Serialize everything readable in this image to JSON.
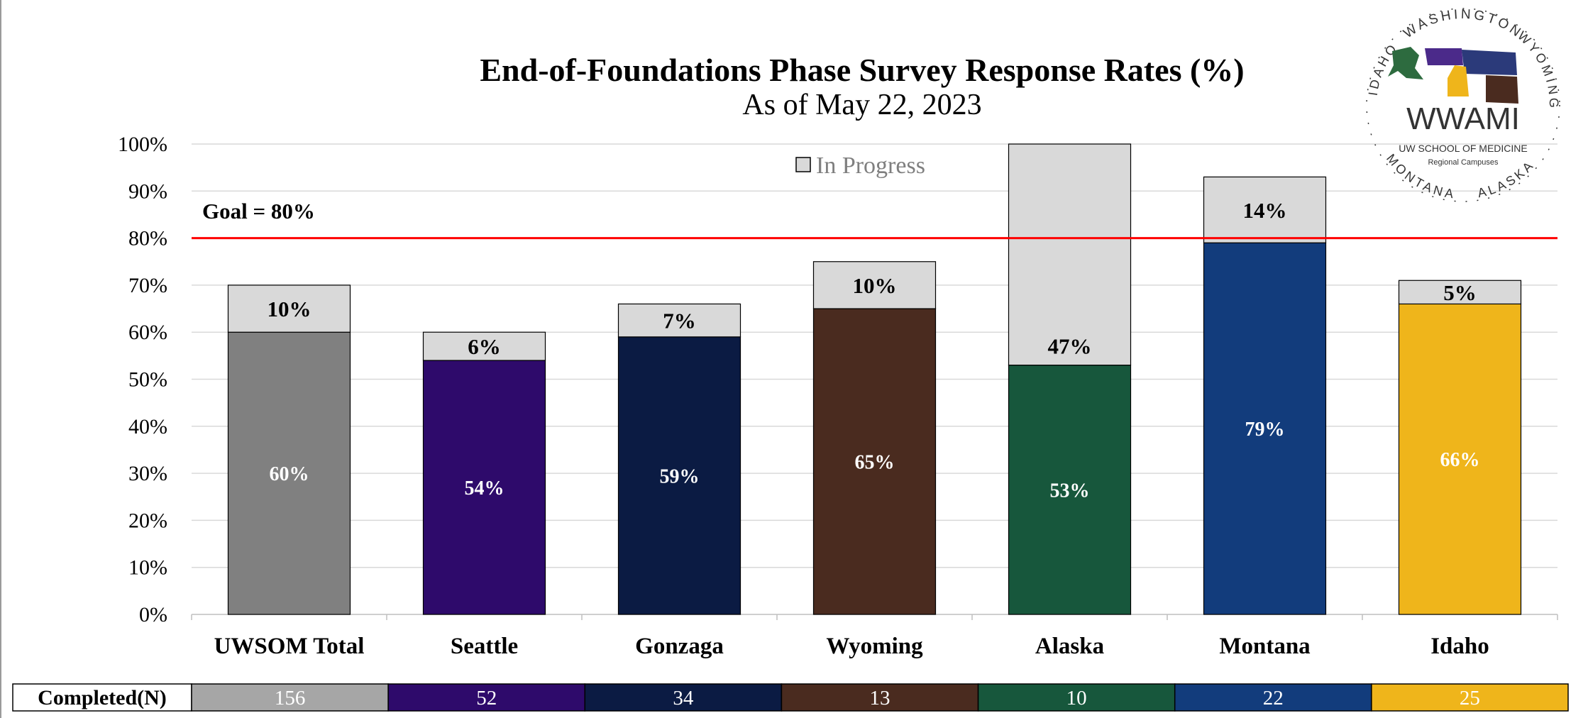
{
  "title": "End-of-Foundations Phase Survey Response Rates (%)",
  "subtitle": "As of May 22, 2023",
  "goal_label": "Goal = 80%",
  "legend_label": "In Progress",
  "colors": {
    "in_progress": "#d9d9d9",
    "goal_line": "#ff0000",
    "grid": "#d9d9d9"
  },
  "logo": {
    "name": "WWAMI",
    "line1": "UW SCHOOL OF MEDICINE",
    "line2": "Regional Campuses",
    "ring_words": [
      "WASHINGTON",
      "WYOMING",
      "ALASKA",
      "MONTANA",
      "IDAHO"
    ]
  },
  "table": {
    "row_label": "Completed(N)",
    "values": [
      "156",
      "52",
      "34",
      "13",
      "10",
      "22",
      "25"
    ]
  },
  "chart_data": {
    "type": "bar",
    "stacked": true,
    "categories": [
      "UWSOM Total",
      "Seattle",
      "Gonzaga",
      "Wyoming",
      "Alaska",
      "Montana",
      "Idaho"
    ],
    "ylim": [
      0,
      100
    ],
    "y_ticks": [
      "0%",
      "10%",
      "20%",
      "30%",
      "40%",
      "50%",
      "60%",
      "70%",
      "80%",
      "90%",
      "100%"
    ],
    "goal": 80,
    "series": [
      {
        "name": "",
        "values": [
          60,
          54,
          59,
          65,
          53,
          79,
          66
        ],
        "labels": [
          "60%",
          "54%",
          "59%",
          "65%",
          "53%",
          "79%",
          "66%"
        ],
        "colors": [
          "#808080",
          "#2e0a6b",
          "#0b1b43",
          "#4a2b1f",
          "#17573c",
          "#123c7c",
          "#efb51b"
        ]
      },
      {
        "name": "In Progress",
        "values": [
          10,
          6,
          7,
          10,
          47,
          14,
          5
        ],
        "labels": [
          "10%",
          "6%",
          "7%",
          "10%",
          "47%",
          "14%",
          "5%"
        ],
        "color": "#d9d9d9"
      }
    ],
    "table_colors": [
      "#a6a6a6",
      "#2e0a6b",
      "#0b1b43",
      "#4a2b1f",
      "#17573c",
      "#123c7c",
      "#efb51b"
    ]
  }
}
